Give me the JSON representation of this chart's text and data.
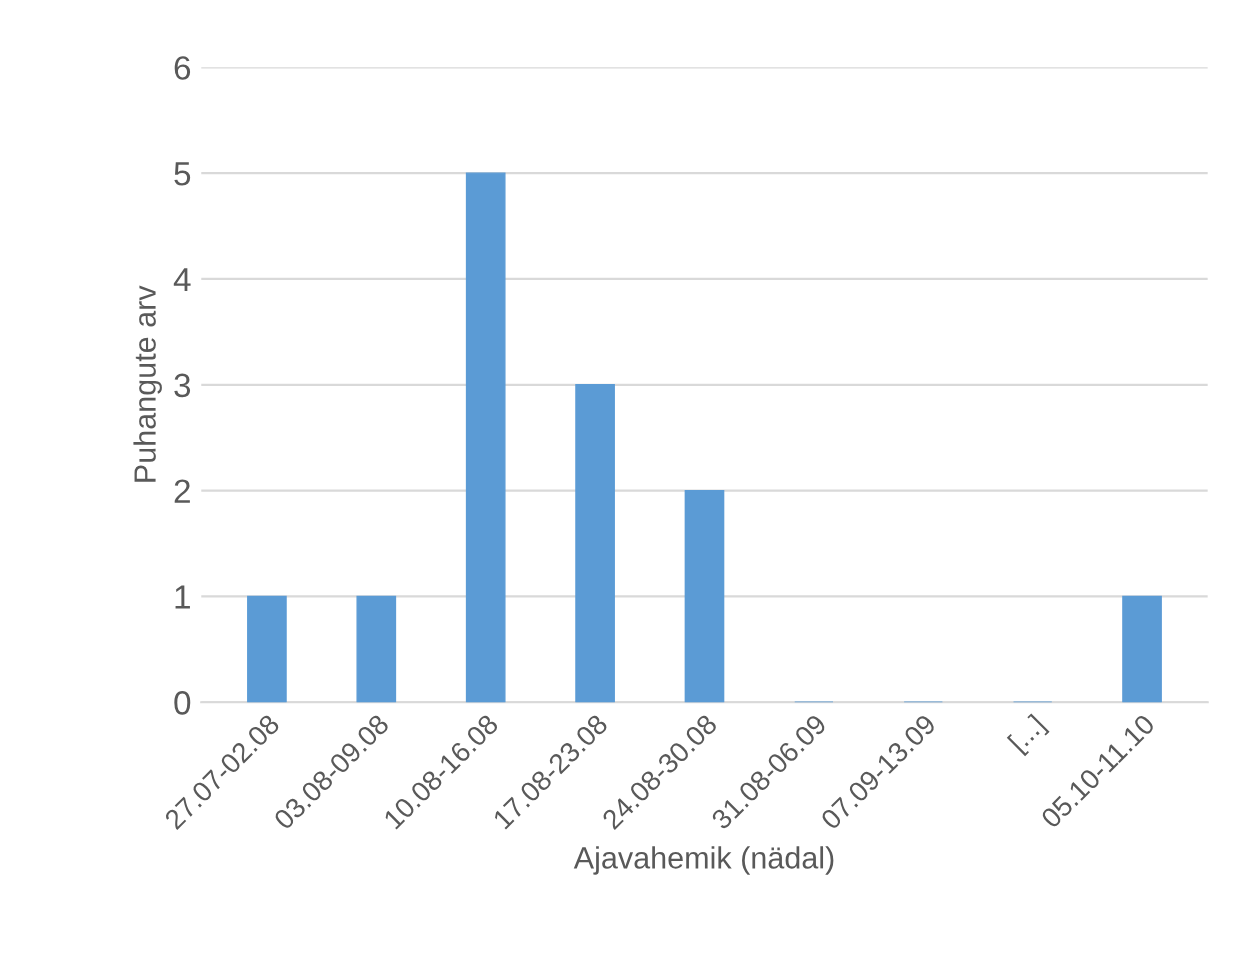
{
  "chart_data": {
    "type": "bar",
    "xlabel": "Ajavahemik (nädal)",
    "ylabel": "Puhangute arv",
    "categories": [
      "27.07-02.08",
      "03.08-09.08",
      "10.08-16.08",
      "17.08-23.08",
      "24.08-30.08",
      "31.08-06.09",
      "07.09-13.09",
      "[...]",
      "05.10-11.10"
    ],
    "values": [
      1,
      1,
      5,
      3,
      2,
      0,
      0,
      0,
      1
    ],
    "color": "#5b9bd5",
    "ylim": [
      0,
      6
    ],
    "yticks": [
      0,
      1,
      2,
      3,
      4,
      5,
      6
    ],
    "grid": "y",
    "legend": false
  }
}
